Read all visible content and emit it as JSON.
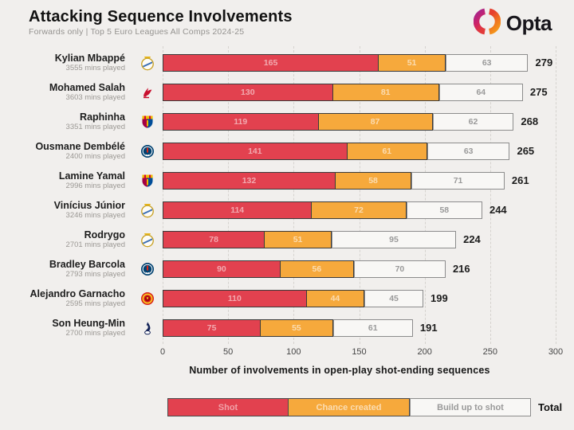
{
  "header": {
    "title": "Attacking Sequence Involvements",
    "subtitle": "Forwards only | Top 5 Euro Leagues All Comps 2024-25",
    "brand": "Opta"
  },
  "chart_data": {
    "type": "bar",
    "stacked": true,
    "orientation": "horizontal",
    "title": "Attacking Sequence Involvements",
    "subtitle": "Forwards only | Top 5 Euro Leagues All Comps 2024-25",
    "xlabel": "Number of involvements in open-play shot-ending sequences",
    "xlim": [
      0,
      300
    ],
    "xticks": [
      0,
      50,
      100,
      150,
      200,
      250,
      300
    ],
    "grid": "vertical-dashed",
    "legend_position": "bottom",
    "legend": [
      {
        "key": "shot",
        "label": "Shot",
        "color": "#e2414f"
      },
      {
        "key": "chance",
        "label": "Chance created",
        "color": "#f6a93c"
      },
      {
        "key": "build",
        "label": "Build up to shot",
        "color": "#f8f7f5"
      }
    ],
    "legend_total_label": "Total",
    "players": [
      {
        "name": "Kylian Mbappé",
        "mins": "3555 mins played",
        "club": "real-madrid",
        "shot": 165,
        "chance": 51,
        "build": 63,
        "total": 279
      },
      {
        "name": "Mohamed Salah",
        "mins": "3603 mins played",
        "club": "liverpool",
        "shot": 130,
        "chance": 81,
        "build": 64,
        "total": 275
      },
      {
        "name": "Raphinha",
        "mins": "3351 mins played",
        "club": "barcelona",
        "shot": 119,
        "chance": 87,
        "build": 62,
        "total": 268
      },
      {
        "name": "Ousmane Dembélé",
        "mins": "2400 mins played",
        "club": "psg",
        "shot": 141,
        "chance": 61,
        "build": 63,
        "total": 265
      },
      {
        "name": "Lamine Yamal",
        "mins": "2996 mins played",
        "club": "barcelona",
        "shot": 132,
        "chance": 58,
        "build": 71,
        "total": 261
      },
      {
        "name": "Vinícius Júnior",
        "mins": "3246 mins played",
        "club": "real-madrid",
        "shot": 114,
        "chance": 72,
        "build": 58,
        "total": 244
      },
      {
        "name": "Rodrygo",
        "mins": "2701 mins played",
        "club": "real-madrid",
        "shot": 78,
        "chance": 51,
        "build": 95,
        "total": 224
      },
      {
        "name": "Bradley Barcola",
        "mins": "2793 mins played",
        "club": "psg",
        "shot": 90,
        "chance": 56,
        "build": 70,
        "total": 216
      },
      {
        "name": "Alejandro Garnacho",
        "mins": "2595 mins played",
        "club": "man-united",
        "shot": 110,
        "chance": 44,
        "build": 45,
        "total": 199
      },
      {
        "name": "Son Heung-Min",
        "mins": "2700 mins played",
        "club": "tottenham",
        "shot": 75,
        "chance": 55,
        "build": 61,
        "total": 191
      }
    ]
  }
}
